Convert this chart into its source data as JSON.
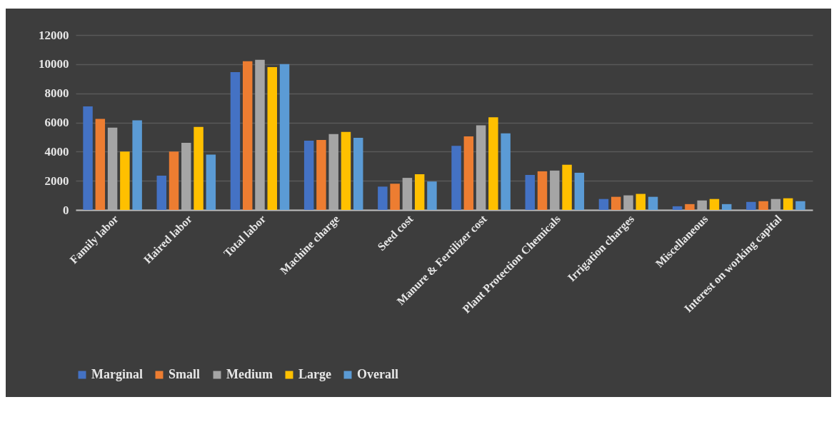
{
  "chart_data": {
    "type": "bar",
    "categories": [
      "Family labor",
      "Haired labor",
      "Total labor",
      "Machine charge",
      "Seed cost",
      "Manure & Fertilizer cost",
      "Plant Protection  Chemicals",
      "Irrigation charges",
      "Miscellaneous",
      "Interest on working capital"
    ],
    "series": [
      {
        "name": "Marginal",
        "color": "#4472c4",
        "values": [
          7100,
          2350,
          9450,
          4750,
          1600,
          4400,
          2400,
          750,
          250,
          550
        ]
      },
      {
        "name": "Small",
        "color": "#ed7d31",
        "values": [
          6250,
          4000,
          10200,
          4800,
          1800,
          5050,
          2650,
          900,
          400,
          600
        ]
      },
      {
        "name": "Medium",
        "color": "#a5a5a5",
        "values": [
          5650,
          4600,
          10300,
          5200,
          2200,
          5800,
          2700,
          1000,
          650,
          750
        ]
      },
      {
        "name": "Large",
        "color": "#ffc000",
        "values": [
          4000,
          5700,
          9800,
          5350,
          2450,
          6350,
          3100,
          1100,
          750,
          800
        ]
      },
      {
        "name": "Overall",
        "color": "#5b9bd5",
        "values": [
          6150,
          3800,
          10000,
          4950,
          1950,
          5250,
          2550,
          900,
          400,
          600
        ]
      }
    ],
    "ylim": [
      0,
      12000
    ],
    "yticks": [
      0,
      2000,
      4000,
      6000,
      8000,
      10000,
      12000
    ],
    "grid": "y",
    "legend": "bottom"
  }
}
